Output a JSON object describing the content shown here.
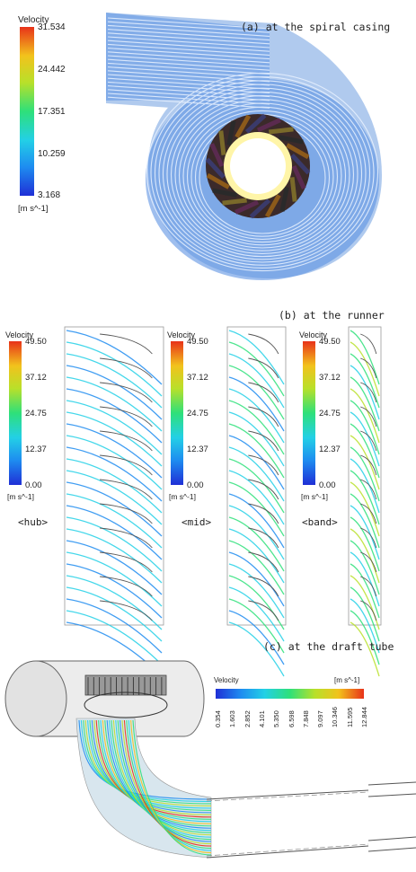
{
  "panels": {
    "a": {
      "caption": "(a) at the spiral casing",
      "legend": {
        "title": "Velocity",
        "ticks": [
          "31.534",
          "24.442",
          "17.351",
          "10.259",
          "3.168"
        ],
        "unit": "[m s^-1]"
      }
    },
    "b": {
      "caption": "(b) at the runner",
      "legends": [
        {
          "title": "Velocity",
          "ticks": [
            "49.50",
            "37.12",
            "24.75",
            "12.37",
            "0.00"
          ],
          "unit": "[m s^-1]",
          "label": "<hub>"
        },
        {
          "title": "Velocity",
          "ticks": [
            "49.50",
            "37.12",
            "24.75",
            "12.37",
            "0.00"
          ],
          "unit": "[m s^-1]",
          "label": "<mid>"
        },
        {
          "title": "Velocity",
          "ticks": [
            "49.50",
            "37.12",
            "24.75",
            "12.37",
            "0.00"
          ],
          "unit": "[m s^-1]",
          "label": "<band>"
        }
      ]
    },
    "c": {
      "caption": "(c) at the draft tube",
      "legend": {
        "title": "Velocity",
        "unit": "[m s^-1]",
        "ticks": [
          "0.354",
          "1.603",
          "2.852",
          "4.101",
          "5.350",
          "6.598",
          "7.848",
          "9.097",
          "10.346",
          "11.595",
          "12.844"
        ]
      }
    }
  },
  "colormap": [
    "#1f2fd6",
    "#1e8cf0",
    "#23d0e6",
    "#2ee07a",
    "#b8e02a",
    "#f2c21c",
    "#e8321a"
  ]
}
